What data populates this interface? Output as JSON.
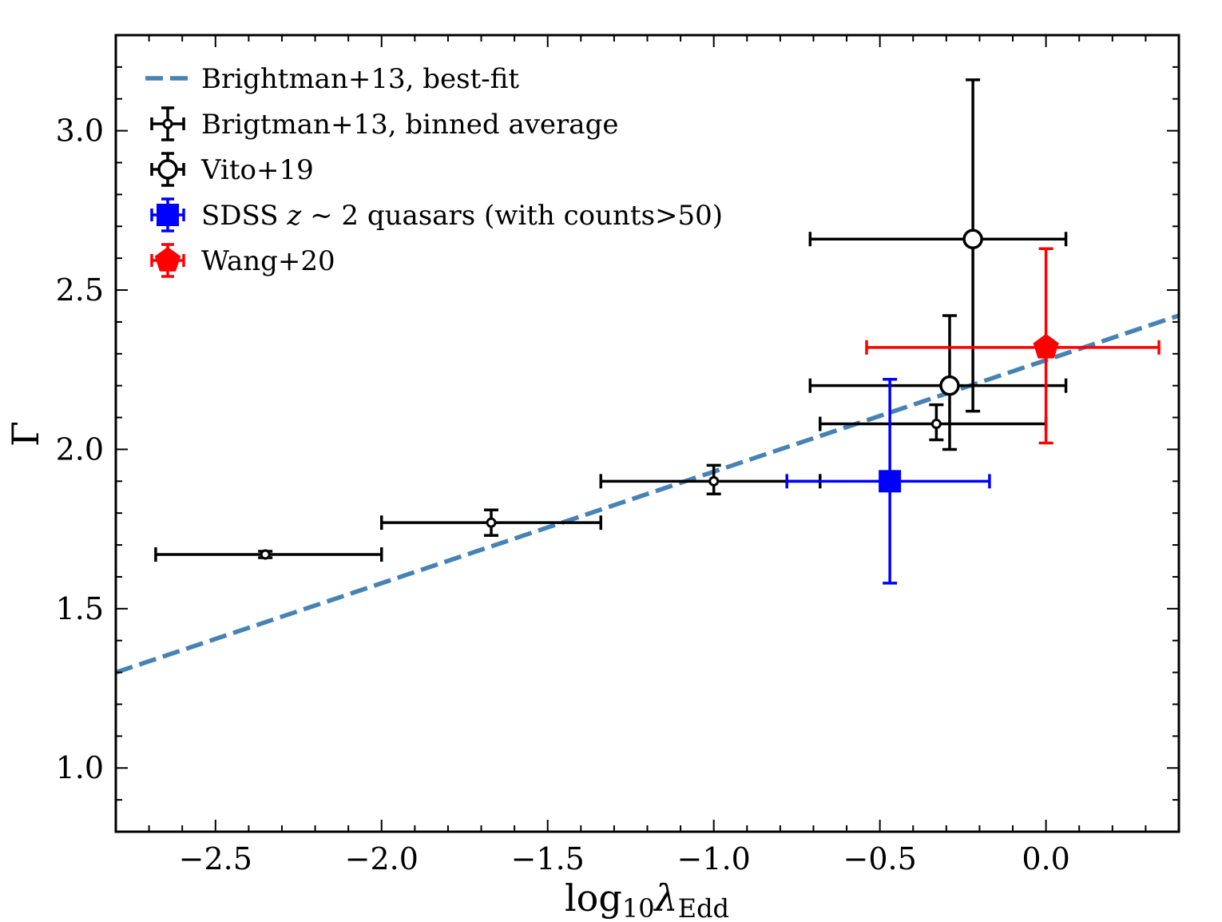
{
  "chart_data": {
    "type": "scatter",
    "xlabel": {
      "base": "log",
      "sub1": "10",
      "greek": "λ",
      "sub2": "Edd"
    },
    "ylabel": "Γ",
    "xlim": [
      -2.8,
      0.4
    ],
    "ylim": [
      0.8,
      3.3
    ],
    "x_ticks": [
      -2.5,
      -2.0,
      -1.5,
      -1.0,
      -0.5,
      0.0
    ],
    "x_tick_labels": [
      "−2.5",
      "−2.0",
      "−1.5",
      "−1.0",
      "−0.5",
      "0.0"
    ],
    "y_ticks": [
      1.0,
      1.5,
      2.0,
      2.5,
      3.0
    ],
    "y_tick_labels": [
      "1.0",
      "1.5",
      "2.0",
      "2.5",
      "3.0"
    ],
    "grid": false,
    "legend_position": "top-left",
    "series": [
      {
        "name": "Brightman+13, best-fit",
        "kind": "line",
        "color": "#4682b4",
        "style": "dashed",
        "slope": 0.35,
        "intercept": 2.28
      },
      {
        "name": "Brigtman+13, binned average",
        "kind": "points",
        "marker": "small-open-circle",
        "color": "#000000",
        "points": [
          {
            "x": -2.35,
            "y": 1.67,
            "xlo": -2.68,
            "xhi": -2.0,
            "ylo": 1.66,
            "yhi": 1.68
          },
          {
            "x": -1.67,
            "y": 1.77,
            "xlo": -2.0,
            "xhi": -1.34,
            "ylo": 1.73,
            "yhi": 1.81
          },
          {
            "x": -1.0,
            "y": 1.9,
            "xlo": -1.34,
            "xhi": -0.68,
            "ylo": 1.86,
            "yhi": 1.95
          },
          {
            "x": -0.33,
            "y": 2.08,
            "xlo": -0.68,
            "xhi": 0.0,
            "ylo": 2.03,
            "yhi": 2.14
          }
        ]
      },
      {
        "name": "Vito+19",
        "kind": "points",
        "marker": "open-circle",
        "color": "#000000",
        "points": [
          {
            "x": -0.22,
            "y": 2.66,
            "xlo": -0.71,
            "xhi": 0.06,
            "ylo": 2.12,
            "yhi": 3.16
          },
          {
            "x": -0.29,
            "y": 2.2,
            "xlo": -0.71,
            "xhi": 0.06,
            "ylo": 2.0,
            "yhi": 2.42
          }
        ]
      },
      {
        "name": "SDSS z ∼ 2 quasars (with counts>50)",
        "legend_parts": {
          "pre": "SDSS ",
          "italic": "z",
          "post": " ∼ 2 quasars (with counts>50)"
        },
        "kind": "points",
        "marker": "square",
        "color": "#0000ff",
        "points": [
          {
            "x": -0.47,
            "y": 1.9,
            "xlo": -0.78,
            "xhi": -0.17,
            "ylo": 1.58,
            "yhi": 2.22
          }
        ]
      },
      {
        "name": "Wang+20",
        "kind": "points",
        "marker": "pentagon",
        "color": "#ff0000",
        "points": [
          {
            "x": 0.0,
            "y": 2.32,
            "xlo": -0.54,
            "xhi": 0.34,
            "ylo": 2.02,
            "yhi": 2.63
          }
        ]
      }
    ]
  }
}
